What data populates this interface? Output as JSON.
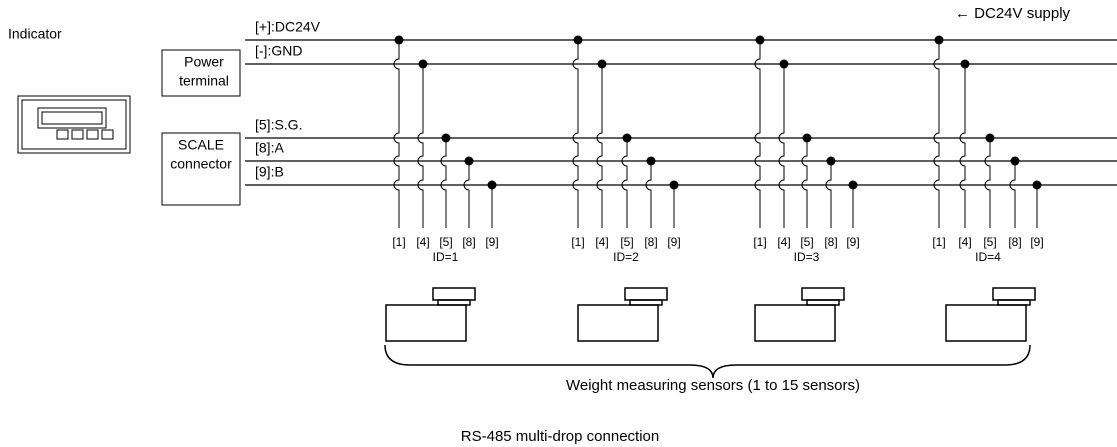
{
  "indicator": {
    "label": "Indicator"
  },
  "power_terminal": {
    "lines": [
      "Power",
      "terminal"
    ]
  },
  "scale_connector": {
    "lines": [
      "SCALE",
      "connector"
    ]
  },
  "bus_lines": [
    "[+]:DC24V",
    "[-]:GND",
    "[5]:S.G.",
    "[8]:A",
    "[9]:B"
  ],
  "supply_note": "← DC24V supply",
  "sensors": [
    {
      "pins": [
        "[1]",
        "[4]",
        "[5]",
        "[8]",
        "[9]"
      ],
      "id": "ID=1"
    },
    {
      "pins": [
        "[1]",
        "[4]",
        "[5]",
        "[8]",
        "[9]"
      ],
      "id": "ID=2"
    },
    {
      "pins": [
        "[1]",
        "[4]",
        "[5]",
        "[8]",
        "[9]"
      ],
      "id": "ID=3"
    },
    {
      "pins": [
        "[1]",
        "[4]",
        "[5]",
        "[8]",
        "[9]"
      ],
      "id": "ID=4"
    }
  ],
  "sensors_label": "Weight measuring sensors (1 to 15 sensors)",
  "caption": "RS-485 multi-drop connection"
}
